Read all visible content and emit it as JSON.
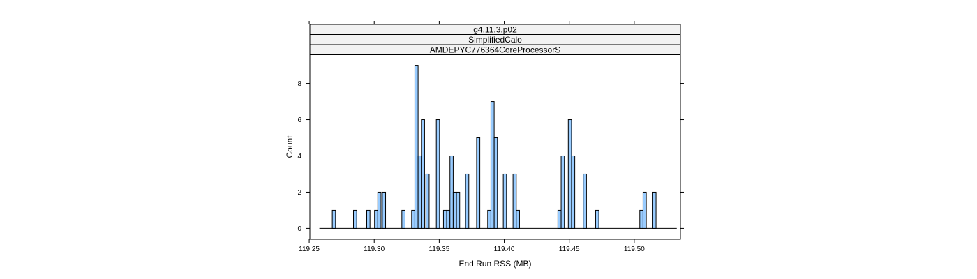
{
  "chart_data": {
    "type": "bar",
    "strips": [
      "g4.11.3.p02",
      "SimplifiedCalo",
      "AMDEPYC776364CoreProcessorS"
    ],
    "xlabel": "End Run RSS (MB)",
    "ylabel": "Count",
    "xlim": [
      119.2505,
      119.5355
    ],
    "ylim": [
      -0.6,
      9.6
    ],
    "xticks": [
      119.25,
      119.3,
      119.35,
      119.4,
      119.45,
      119.5
    ],
    "xtick_labels": [
      "119.25",
      "119.30",
      "119.35",
      "119.40",
      "119.45",
      "119.50"
    ],
    "yticks": [
      0,
      2,
      4,
      6,
      8
    ],
    "ytick_labels": [
      "0",
      "2",
      "4",
      "6",
      "8"
    ],
    "bar_width": 0.0025,
    "baseline_range": [
      119.2578,
      119.5327
    ],
    "bar_color": "#99ccff",
    "bins": [
      {
        "x": 119.269,
        "count": 1
      },
      {
        "x": 119.2853,
        "count": 1
      },
      {
        "x": 119.2955,
        "count": 1
      },
      {
        "x": 119.3015,
        "count": 1
      },
      {
        "x": 119.304,
        "count": 2
      },
      {
        "x": 119.3075,
        "count": 2
      },
      {
        "x": 119.3225,
        "count": 1
      },
      {
        "x": 119.33,
        "count": 1
      },
      {
        "x": 119.3325,
        "count": 9
      },
      {
        "x": 119.335,
        "count": 4
      },
      {
        "x": 119.3375,
        "count": 6
      },
      {
        "x": 119.341,
        "count": 3
      },
      {
        "x": 119.349,
        "count": 6
      },
      {
        "x": 119.3545,
        "count": 1
      },
      {
        "x": 119.357,
        "count": 1
      },
      {
        "x": 119.3595,
        "count": 4
      },
      {
        "x": 119.362,
        "count": 2
      },
      {
        "x": 119.3645,
        "count": 2
      },
      {
        "x": 119.3715,
        "count": 3
      },
      {
        "x": 119.38,
        "count": 5
      },
      {
        "x": 119.3885,
        "count": 1
      },
      {
        "x": 119.391,
        "count": 7
      },
      {
        "x": 119.3935,
        "count": 5
      },
      {
        "x": 119.4005,
        "count": 3
      },
      {
        "x": 119.408,
        "count": 3
      },
      {
        "x": 119.4105,
        "count": 1
      },
      {
        "x": 119.4425,
        "count": 1
      },
      {
        "x": 119.445,
        "count": 4
      },
      {
        "x": 119.4505,
        "count": 6
      },
      {
        "x": 119.453,
        "count": 4
      },
      {
        "x": 119.462,
        "count": 3
      },
      {
        "x": 119.4715,
        "count": 1
      },
      {
        "x": 119.5055,
        "count": 1
      },
      {
        "x": 119.508,
        "count": 2
      },
      {
        "x": 119.5155,
        "count": 2
      }
    ]
  }
}
